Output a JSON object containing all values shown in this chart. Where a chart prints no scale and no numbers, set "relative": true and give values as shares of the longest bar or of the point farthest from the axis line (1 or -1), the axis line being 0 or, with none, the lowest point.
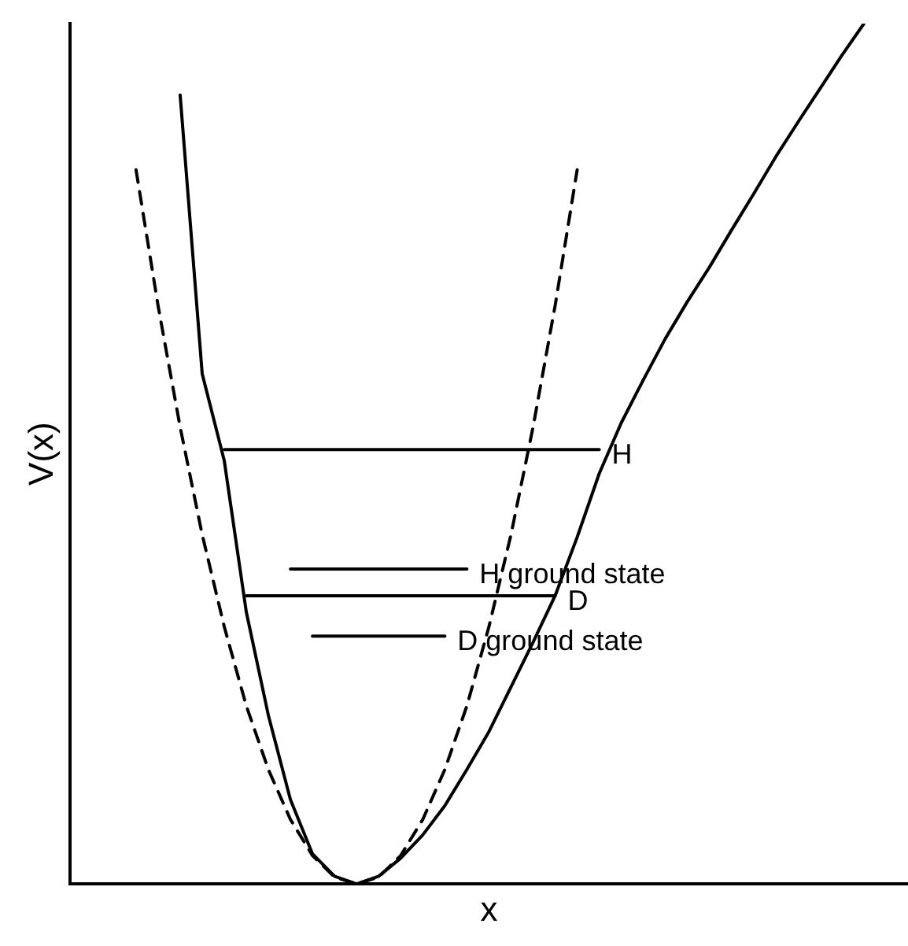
{
  "chart_data": {
    "type": "line",
    "relative": true,
    "xlabel": "x",
    "ylabel": "V(x)",
    "legend": false,
    "grid": false,
    "marker": "none",
    "categories": [
      null,
      null,
      null,
      null,
      null,
      null,
      null,
      null,
      null,
      null,
      null,
      null,
      null,
      null,
      null,
      null,
      null,
      null,
      null,
      null,
      null,
      null,
      null,
      null,
      null,
      null,
      null,
      null,
      null,
      null,
      null,
      null,
      null,
      null,
      null,
      null,
      null,
      null,
      null
    ],
    "series": [
      {
        "color": "#000000",
        "line_style": "solid",
        "values": [
          null,
          null,
          null,
          null,
          null,
          0.917,
          0.593,
          0.492,
          0.316,
          0.196,
          0.098,
          0.035,
          0.009,
          0,
          0.009,
          0.03,
          0.057,
          0.091,
          0.133,
          0.177,
          0.229,
          0.281,
          0.335,
          0.403,
          0.477,
          0.536,
          0.586,
          0.634,
          0.677,
          0.717,
          0.76,
          0.802,
          0.845,
          0.885,
          0.924,
          0.963,
          1,
          null,
          null
        ]
      },
      {
        "color": "#000000",
        "line_style": "dashed",
        "values": [
          null,
          null,
          null,
          0.83,
          0.672,
          0.531,
          0.406,
          0.299,
          0.207,
          0.133,
          0.075,
          0.033,
          0.008,
          0,
          0.008,
          0.033,
          0.075,
          0.133,
          0.207,
          0.299,
          0.406,
          0.531,
          0.672,
          0.83,
          null,
          null,
          null,
          null,
          null,
          null,
          null,
          null,
          null,
          null,
          null,
          null,
          null,
          null,
          null
        ]
      },
      {
        "name": "H",
        "color": "#000000",
        "line_style": "solid",
        "values": [
          null,
          null,
          null,
          null,
          null,
          null,
          null,
          0.505,
          0.505,
          0.505,
          0.505,
          0.505,
          0.505,
          0.505,
          0.505,
          0.505,
          0.505,
          0.505,
          0.505,
          0.505,
          0.505,
          0.505,
          0.505,
          0.505,
          0.505,
          null,
          null,
          null,
          null,
          null,
          null,
          null,
          null,
          null,
          null,
          null,
          null,
          null,
          null
        ]
      },
      {
        "name": "D",
        "color": "#000000",
        "line_style": "solid",
        "values": [
          null,
          null,
          null,
          null,
          null,
          null,
          null,
          null,
          0.335,
          0.335,
          0.335,
          0.335,
          0.335,
          0.335,
          0.335,
          0.335,
          0.335,
          0.335,
          0.335,
          0.335,
          0.335,
          0.335,
          0.335,
          null,
          null,
          null,
          null,
          null,
          null,
          null,
          null,
          null,
          null,
          null,
          null,
          null,
          null,
          null,
          null
        ]
      },
      {
        "name": "H ground state",
        "color": "#000000",
        "line_style": "solid",
        "values": [
          null,
          null,
          null,
          null,
          null,
          null,
          null,
          null,
          null,
          null,
          0.366,
          0.366,
          0.366,
          0.366,
          0.366,
          0.366,
          0.366,
          0.366,
          0.366,
          null,
          null,
          null,
          null,
          null,
          null,
          null,
          null,
          null,
          null,
          null,
          null,
          null,
          null,
          null,
          null,
          null,
          null,
          null,
          null
        ]
      },
      {
        "name": "D ground state",
        "color": "#000000",
        "line_style": "solid",
        "values": [
          null,
          null,
          null,
          null,
          null,
          null,
          null,
          null,
          null,
          null,
          null,
          0.288,
          0.288,
          0.288,
          0.288,
          0.288,
          0.288,
          0.288,
          null,
          null,
          null,
          null,
          null,
          null,
          null,
          null,
          null,
          null,
          null,
          null,
          null,
          null,
          null,
          null,
          null,
          null,
          null,
          null,
          null
        ]
      }
    ]
  }
}
